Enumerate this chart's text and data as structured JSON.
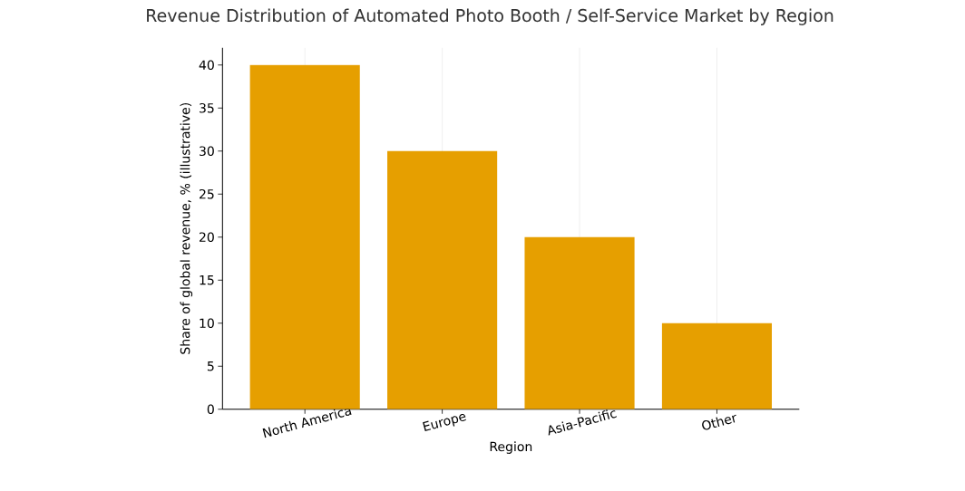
{
  "chart_data": {
    "type": "bar",
    "title": "Revenue Distribution of Automated Photo Booth / Self-Service Market by Region",
    "xlabel": "Region",
    "ylabel": "Share of global revenue, % (illustrative)",
    "categories": [
      "North America",
      "Europe",
      "Asia-Pacific",
      "Other"
    ],
    "values": [
      40,
      30,
      20,
      10
    ],
    "color": "#e69f00",
    "ylim": [
      0,
      42
    ],
    "yticks": [
      0,
      5,
      10,
      15,
      20,
      25,
      30,
      35,
      40
    ],
    "grid": "x"
  }
}
